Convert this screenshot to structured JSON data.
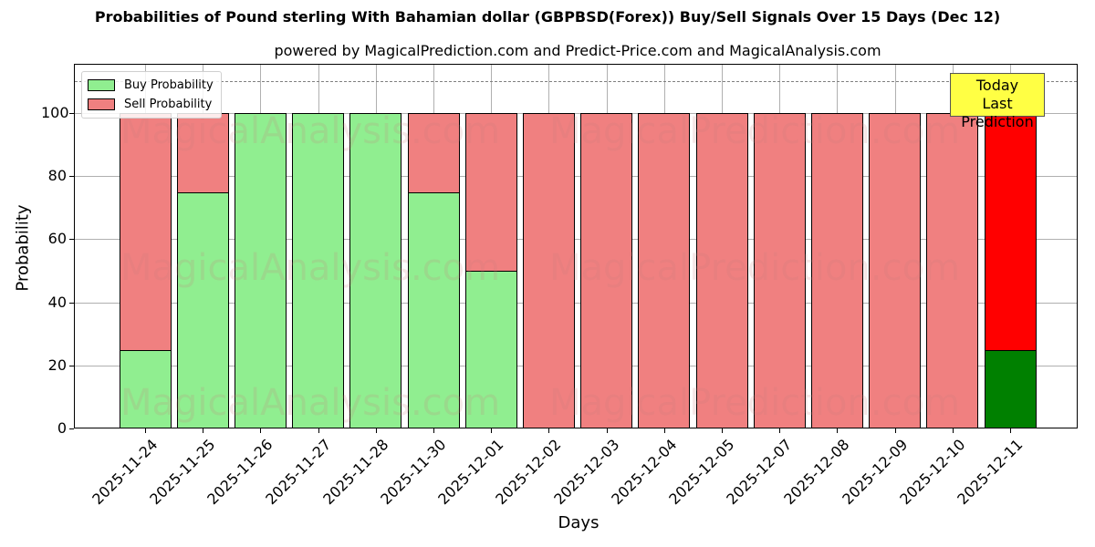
{
  "header": {
    "title": "Probabilities of Pound sterling With Bahamian dollar (GBPBSD(Forex)) Buy/Sell Signals Over 15 Days (Dec 12)",
    "subtitle": "powered by MagicalPrediction.com and Predict-Price.com and MagicalAnalysis.com"
  },
  "legend": {
    "buy_label": "Buy Probability",
    "sell_label": "Sell Probability"
  },
  "annotation": {
    "line1": "Today",
    "line2": "Last Prediction"
  },
  "watermarks": [
    "MagicalAnalysis.com",
    "MagicalPrediction.com"
  ],
  "colors": {
    "buy": "#90ee90",
    "sell": "#f08080",
    "today_buy": "#008000",
    "today_sell": "#ff0000",
    "annotation_bg": "#ffff44"
  },
  "chart_data": {
    "type": "bar",
    "stacked": true,
    "title": "Probabilities of Pound sterling With Bahamian dollar (GBPBSD(Forex)) Buy/Sell Signals Over 15 Days (Dec 12)",
    "subtitle": "powered by MagicalPrediction.com and Predict-Price.com and MagicalAnalysis.com",
    "xlabel": "Days",
    "ylabel": "Probability",
    "ylim": [
      0,
      115
    ],
    "yticks": [
      0,
      20,
      40,
      60,
      80,
      100
    ],
    "grid": true,
    "legend_position": "upper left",
    "threshold_line": 110,
    "categories": [
      "2025-11-24",
      "2025-11-25",
      "2025-11-26",
      "2025-11-27",
      "2025-11-28",
      "2025-11-30",
      "2025-12-01",
      "2025-12-02",
      "2025-12-03",
      "2025-12-04",
      "2025-12-05",
      "2025-12-07",
      "2025-12-08",
      "2025-12-09",
      "2025-12-10",
      "2025-12-11"
    ],
    "series": [
      {
        "name": "Buy Probability",
        "values": [
          25,
          75,
          100,
          100,
          100,
          75,
          50,
          0,
          0,
          0,
          0,
          0,
          0,
          0,
          0,
          25
        ]
      },
      {
        "name": "Sell Probability",
        "values": [
          75,
          25,
          0,
          0,
          0,
          25,
          50,
          100,
          100,
          100,
          100,
          100,
          100,
          100,
          100,
          75
        ]
      }
    ],
    "annotations": [
      "Today\nLast Prediction"
    ]
  }
}
